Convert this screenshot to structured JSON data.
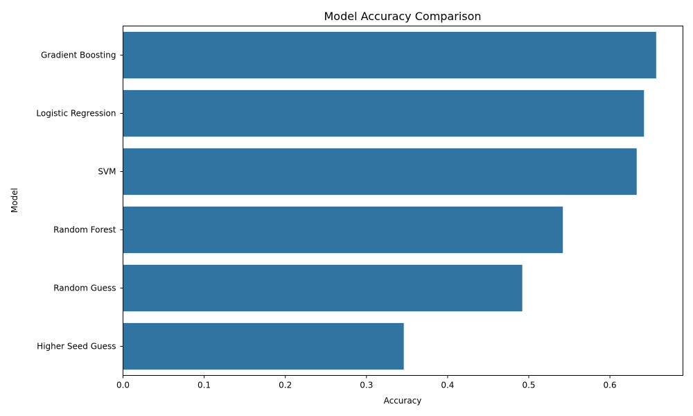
{
  "chart_data": {
    "type": "bar",
    "orientation": "horizontal",
    "title": "Model Accuracy Comparison",
    "xlabel": "Accuracy",
    "ylabel": "Model",
    "categories": [
      "Gradient Boosting",
      "Logistic Regression",
      "SVM",
      "Random Forest",
      "Random Guess",
      "Higher Seed Guess"
    ],
    "values": [
      0.657,
      0.642,
      0.633,
      0.542,
      0.492,
      0.346
    ],
    "xlim": [
      0,
      0.69
    ],
    "xticks": [
      "0.0",
      "0.1",
      "0.2",
      "0.3",
      "0.4",
      "0.5",
      "0.6"
    ],
    "grid": false,
    "legend": false,
    "bar_color": "#3274a1"
  }
}
